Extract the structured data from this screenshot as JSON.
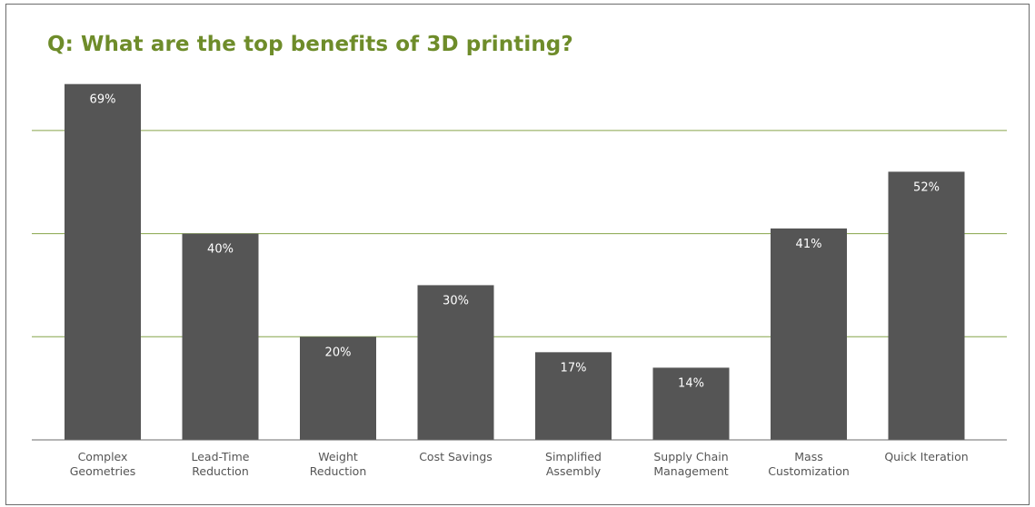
{
  "title": "Q: What are the top benefits of 3D printing?",
  "colors": {
    "bar": "#555555",
    "gridline": "#86a54a",
    "baseline": "#6b6b6b",
    "title": "#6e8c2a",
    "bar_label": "#ffffff",
    "category_label": "#555555"
  },
  "chart_data": {
    "type": "bar",
    "title": "Q: What are the top benefits of 3D printing?",
    "xlabel": "",
    "ylabel": "",
    "categories": [
      [
        "Complex",
        "Geometries"
      ],
      [
        "Lead-Time",
        "Reduction"
      ],
      [
        "Weight",
        "Reduction"
      ],
      [
        "Cost Savings"
      ],
      [
        "Simplified",
        "Assembly"
      ],
      [
        "Supply Chain",
        "Management"
      ],
      [
        "Mass",
        "Customization"
      ],
      [
        "Quick Iteration"
      ]
    ],
    "values": [
      69,
      40,
      20,
      30,
      17,
      14,
      41,
      52
    ],
    "data_labels": [
      "69%",
      "40%",
      "20%",
      "30%",
      "17%",
      "14%",
      "41%",
      "52%"
    ],
    "ylim": [
      0,
      70
    ],
    "gridlines": [
      20,
      40,
      60
    ],
    "y_axis_visible": false,
    "legend": "none"
  }
}
